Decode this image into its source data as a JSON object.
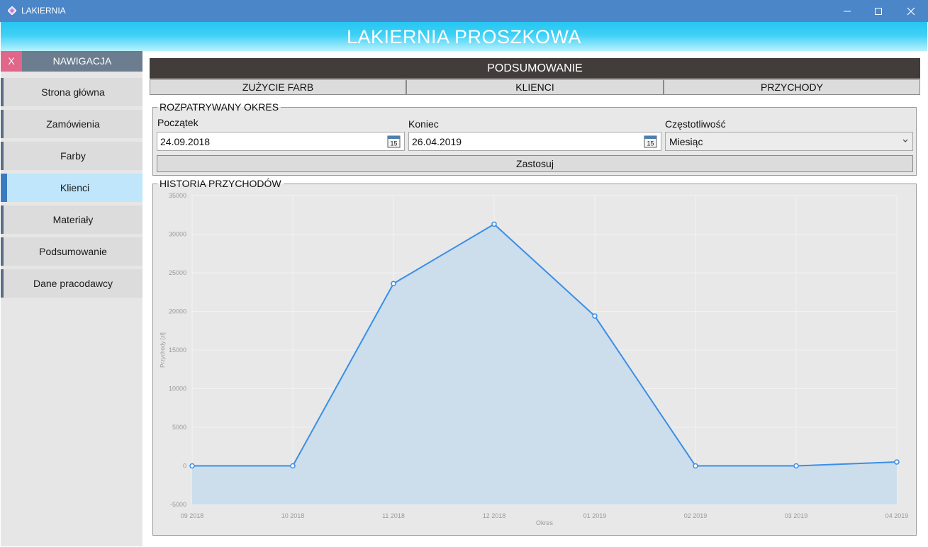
{
  "window": {
    "title": "LAKIERNIA"
  },
  "banner": {
    "title": "LAKIERNIA PROSZKOWA"
  },
  "nav": {
    "close_label": "X",
    "title": "NAWIGACJA",
    "items": [
      {
        "label": "Strona główna"
      },
      {
        "label": "Zamówienia"
      },
      {
        "label": "Farby"
      },
      {
        "label": "Klienci",
        "active": true
      },
      {
        "label": "Materiały"
      },
      {
        "label": "Podsumowanie"
      },
      {
        "label": "Dane pracodawcy"
      }
    ]
  },
  "main": {
    "header": "PODSUMOWANIE",
    "tabs": [
      {
        "label": "ZUŻYCIE FARB"
      },
      {
        "label": "KLIENCI"
      },
      {
        "label": "PRZYCHODY"
      }
    ],
    "period": {
      "legend": "ROZPATRYWANY OKRES",
      "start_label": "Początek",
      "start_value": "24.09.2018",
      "end_label": "Koniec",
      "end_value": "26.04.2019",
      "frequency_label": "Częstotliwość",
      "frequency_value": "Miesiąc",
      "apply_label": "Zastosuj"
    },
    "history_legend": "HISTORIA PRZYCHODÓW"
  },
  "colors": {
    "accent": "#3a8ee6",
    "area": "#c9dcec",
    "header": "#423d3a",
    "banner": "#26c6f2"
  },
  "icons": {
    "calendar": "calendar-icon",
    "dropdown": "chevron-down-icon",
    "close": "close-icon"
  },
  "chart_data": {
    "type": "area",
    "xlabel": "Okres",
    "ylabel": "Przychody [zł]",
    "categories": [
      "09 2018",
      "10 2018",
      "11 2018",
      "12 2018",
      "01 2019",
      "02 2019",
      "03 2019",
      "04 2019"
    ],
    "values": [
      0,
      0,
      23600,
      31300,
      19400,
      0,
      0,
      500
    ],
    "ylim": [
      -5000,
      35000
    ],
    "yticks": [
      -5000,
      0,
      5000,
      10000,
      15000,
      20000,
      25000,
      30000,
      35000
    ],
    "grid": true,
    "legend": "none"
  }
}
